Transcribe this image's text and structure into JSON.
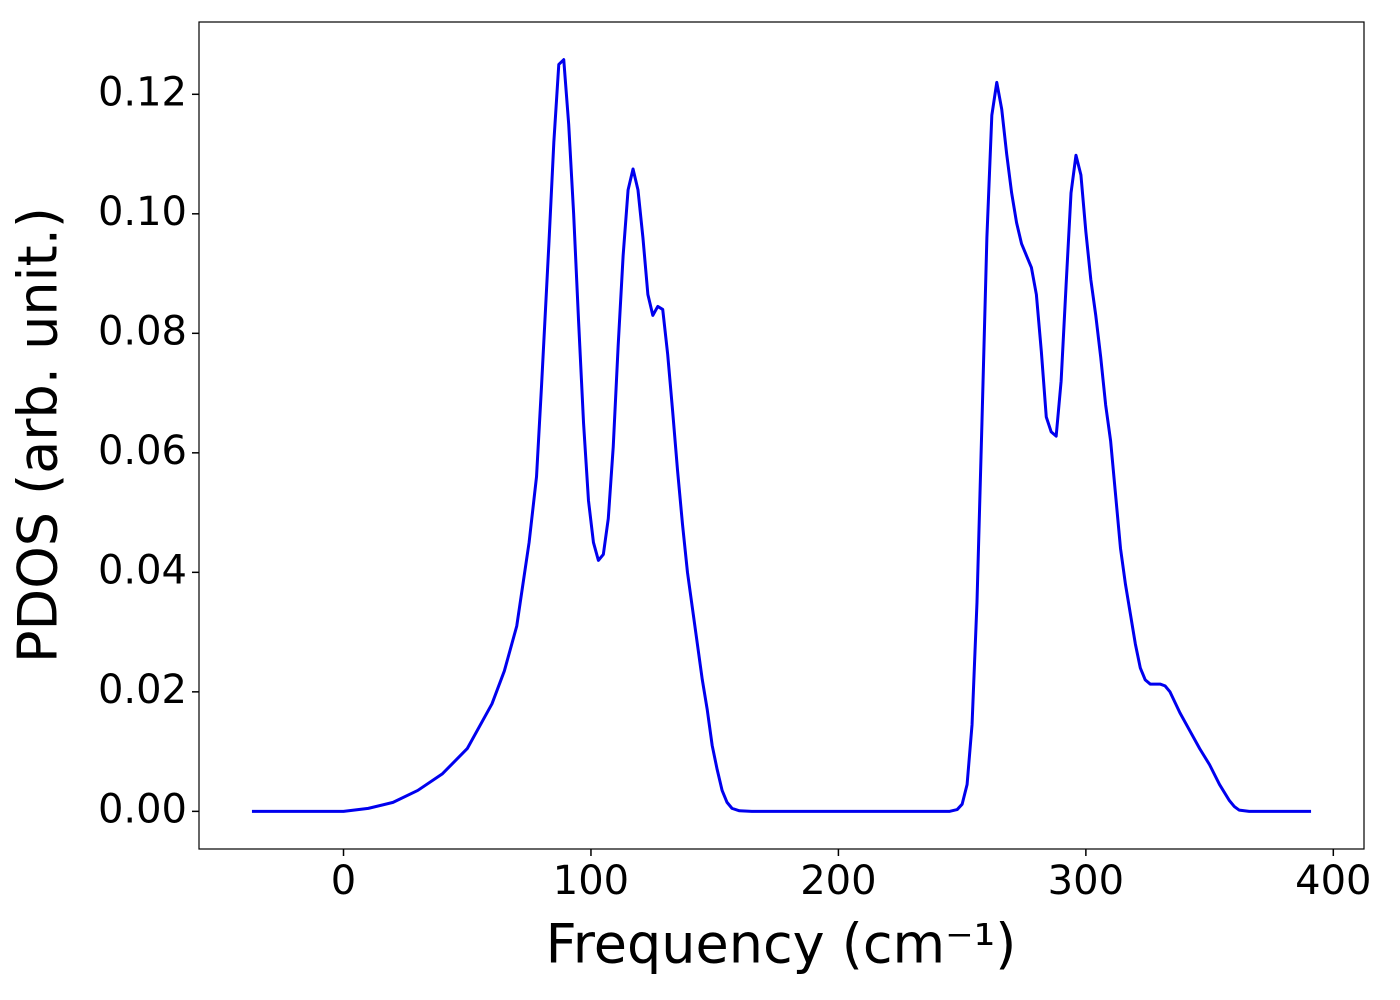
{
  "chart_data": {
    "type": "line",
    "xlabel": "Frequency (cm⁻¹)",
    "ylabel": "PDOS (arb. unit.)",
    "xlim": [
      -58.4,
      412.4
    ],
    "ylim": [
      -0.0063,
      0.1321
    ],
    "xticks": [
      0,
      100,
      200,
      300,
      400
    ],
    "yticks": [
      {
        "value": 0,
        "label": "0.00"
      },
      0.02,
      0.04,
      0.06,
      0.08,
      {
        "value": 0.1,
        "label": "0.10"
      },
      0.12
    ],
    "series": [
      {
        "color": "#0000ee",
        "x": [
          -37,
          0,
          10,
          20,
          30,
          40,
          50,
          60,
          65,
          70,
          75,
          78,
          80,
          83,
          85,
          87,
          89,
          91,
          93,
          95,
          97,
          99,
          101,
          103,
          105,
          107,
          109,
          111,
          113,
          115,
          117,
          119,
          121,
          123,
          125,
          127,
          129,
          131,
          133,
          135,
          137,
          139,
          141,
          143,
          145,
          147,
          149,
          151,
          153,
          155,
          157,
          160,
          165,
          200,
          245,
          248,
          250,
          252,
          254,
          256,
          258,
          260,
          262,
          264,
          266,
          268,
          270,
          272,
          274,
          276,
          278,
          280,
          282,
          284,
          286,
          288,
          290,
          292,
          294,
          296,
          298,
          300,
          302,
          304,
          306,
          308,
          310,
          312,
          314,
          316,
          318,
          320,
          322,
          324,
          326,
          330,
          332,
          334,
          338,
          342,
          346,
          350,
          354,
          358,
          360,
          362,
          366,
          391
        ],
        "values": [
          0,
          0,
          0.0005,
          0.0015,
          0.0035,
          0.0063,
          0.0105,
          0.018,
          0.0235,
          0.031,
          0.045,
          0.056,
          0.071,
          0.095,
          0.112,
          0.125,
          0.1258,
          0.115,
          0.1,
          0.082,
          0.065,
          0.052,
          0.045,
          0.042,
          0.043,
          0.049,
          0.061,
          0.078,
          0.093,
          0.104,
          0.1075,
          0.104,
          0.096,
          0.0865,
          0.083,
          0.0845,
          0.084,
          0.0765,
          0.067,
          0.057,
          0.048,
          0.04,
          0.034,
          0.028,
          0.022,
          0.017,
          0.011,
          0.007,
          0.0035,
          0.0015,
          0.0005,
          0.0001,
          0,
          0,
          0,
          0.0003,
          0.0012,
          0.0045,
          0.0145,
          0.035,
          0.065,
          0.096,
          0.1165,
          0.122,
          0.1175,
          0.11,
          0.1035,
          0.0985,
          0.095,
          0.093,
          0.091,
          0.0865,
          0.077,
          0.066,
          0.0635,
          0.0628,
          0.072,
          0.088,
          0.1035,
          0.1098,
          0.1065,
          0.097,
          0.089,
          0.083,
          0.076,
          0.068,
          0.062,
          0.053,
          0.044,
          0.038,
          0.033,
          0.028,
          0.024,
          0.022,
          0.0213,
          0.0213,
          0.021,
          0.02,
          0.0165,
          0.0135,
          0.0105,
          0.0078,
          0.0045,
          0.0018,
          0.0008,
          0.0002,
          0,
          0
        ]
      }
    ]
  }
}
